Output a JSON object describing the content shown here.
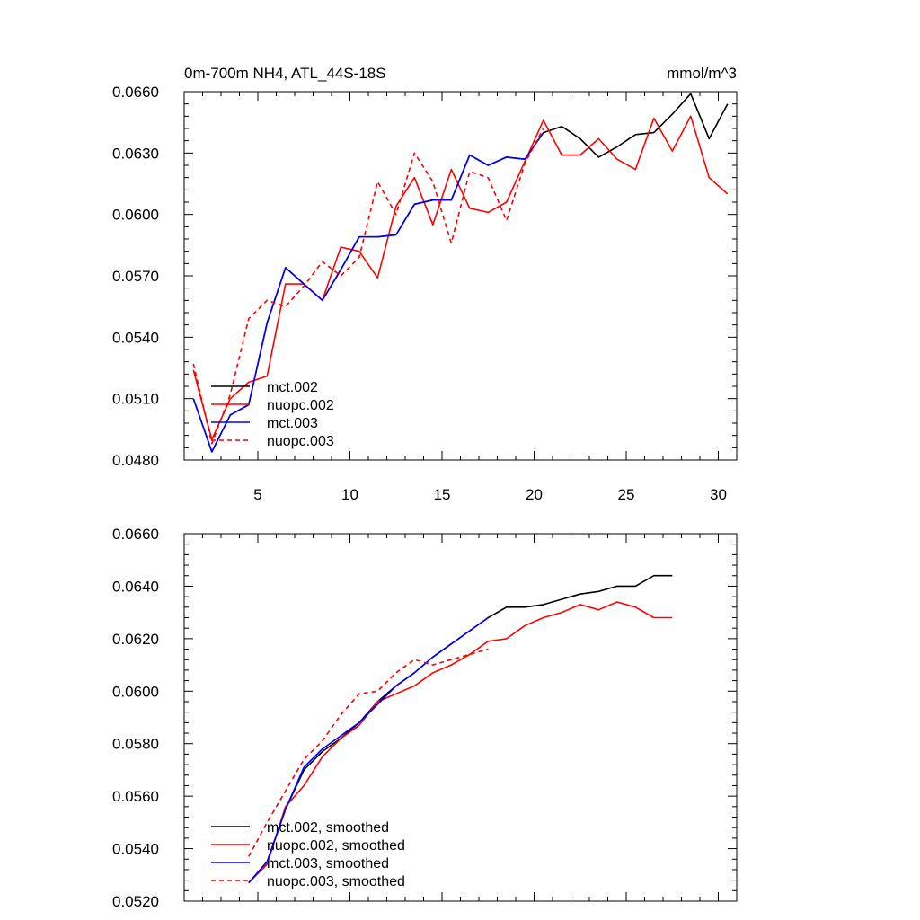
{
  "chart_data": [
    {
      "type": "line",
      "title": "0m-700m NH4, ATL_44S-18S",
      "units": "mmol/m^3",
      "xlim": [
        1,
        31
      ],
      "ylim": [
        0.048,
        0.066
      ],
      "xticks": [
        5,
        10,
        15,
        20,
        25,
        30
      ],
      "xtick_labels": [
        "5",
        "10",
        "15",
        "20",
        "25",
        "30"
      ],
      "yticks": [
        0.048,
        0.051,
        0.054,
        0.057,
        0.06,
        0.063,
        0.066
      ],
      "ytick_labels": [
        "0.0480",
        "0.0510",
        "0.0540",
        "0.0570",
        "0.0600",
        "0.0630",
        "0.0660"
      ],
      "legend_position": "lower-left",
      "series": [
        {
          "name": "mct.002",
          "color": "#000000",
          "dash": "solid",
          "x": [
            1.5,
            2.5,
            3.5,
            4.5,
            5.5,
            6.5,
            7.5,
            8.5,
            9.5,
            10.5,
            11.5,
            12.5,
            13.5,
            14.5,
            15.5,
            16.5,
            17.5,
            18.5,
            19.5,
            20.5,
            21.5,
            22.5,
            23.5,
            24.5,
            25.5,
            26.5,
            27.5,
            28.5,
            29.5,
            30.5
          ],
          "values": [
            0.051,
            0.0484,
            0.0502,
            0.0507,
            0.0547,
            0.0574,
            0.0566,
            0.0558,
            0.0573,
            0.0589,
            0.0589,
            0.059,
            0.0605,
            0.0607,
            0.0607,
            0.0629,
            0.0624,
            0.0628,
            0.0627,
            0.064,
            0.0643,
            0.0637,
            0.0628,
            0.0633,
            0.0639,
            0.064,
            0.0649,
            0.0659,
            0.0637,
            0.0654
          ]
        },
        {
          "name": "nuopc.002",
          "color": "#ff0000",
          "dash": "solid",
          "x": [
            1.5,
            2.5,
            3.5,
            4.5,
            5.5,
            6.5,
            7.5,
            8.5,
            9.5,
            10.5,
            11.5,
            12.5,
            13.5,
            14.5,
            15.5,
            16.5,
            17.5,
            18.5,
            19.5,
            20.5,
            21.5,
            22.5,
            23.5,
            24.5,
            25.5,
            26.5,
            27.5,
            28.5,
            29.5,
            30.5
          ],
          "values": [
            0.0524,
            0.049,
            0.051,
            0.0518,
            0.0521,
            0.0566,
            0.0566,
            0.0558,
            0.0584,
            0.0582,
            0.0569,
            0.0604,
            0.0618,
            0.0595,
            0.0622,
            0.0603,
            0.0601,
            0.0606,
            0.0626,
            0.0646,
            0.0629,
            0.0629,
            0.0637,
            0.0627,
            0.0622,
            0.0647,
            0.0631,
            0.0648,
            0.0618,
            0.061
          ]
        },
        {
          "name": "mct.003",
          "color": "#0000ff",
          "dash": "solid",
          "x": [
            1.5,
            2.5,
            3.5,
            4.5,
            5.5,
            6.5,
            7.5,
            8.5,
            9.5,
            10.5,
            11.5,
            12.5,
            13.5,
            14.5,
            15.5,
            16.5,
            17.5,
            18.5,
            19.5,
            20.5
          ],
          "values": [
            0.051,
            0.0484,
            0.0502,
            0.0507,
            0.0547,
            0.0574,
            0.0566,
            0.0558,
            0.0573,
            0.0589,
            0.0589,
            0.059,
            0.0605,
            0.0607,
            0.0607,
            0.0629,
            0.0624,
            0.0628,
            0.0627,
            0.064
          ]
        },
        {
          "name": "nuopc.003",
          "color": "#ff0000",
          "dash": "dashed",
          "x": [
            1.5,
            2.5,
            3.5,
            4.5,
            5.5,
            6.5,
            7.5,
            8.5,
            9.5,
            10.5,
            11.5,
            12.5,
            13.5,
            14.5,
            15.5,
            16.5,
            17.5,
            18.5,
            19.5,
            20.5
          ],
          "values": [
            0.0527,
            0.0488,
            0.0512,
            0.0549,
            0.0558,
            0.0555,
            0.0565,
            0.0577,
            0.057,
            0.0579,
            0.0616,
            0.06,
            0.063,
            0.0616,
            0.0586,
            0.0621,
            0.0618,
            0.0597,
            0.0625,
            0.0642
          ]
        }
      ]
    },
    {
      "type": "line",
      "xlim": [
        1,
        31
      ],
      "ylim": [
        0.052,
        0.066
      ],
      "xticks": [
        5,
        10,
        15,
        20,
        25,
        30
      ],
      "yticks": [
        0.052,
        0.054,
        0.056,
        0.058,
        0.06,
        0.062,
        0.064,
        0.066
      ],
      "ytick_labels": [
        "0.0520",
        "0.0540",
        "0.0560",
        "0.0580",
        "0.0600",
        "0.0620",
        "0.0640",
        "0.0660"
      ],
      "legend_position": "lower-left",
      "series": [
        {
          "name": "mct.002, smoothed",
          "color": "#000000",
          "dash": "solid",
          "x": [
            4.5,
            5.5,
            6.5,
            7.5,
            8.5,
            9.5,
            10.5,
            11.5,
            12.5,
            13.5,
            14.5,
            15.5,
            16.5,
            17.5,
            18.5,
            19.5,
            20.5,
            21.5,
            22.5,
            23.5,
            24.5,
            25.5,
            26.5,
            27.5
          ],
          "values": [
            0.0527,
            0.0535,
            0.0555,
            0.057,
            0.0577,
            0.0582,
            0.0588,
            0.0596,
            0.0602,
            0.0607,
            0.0613,
            0.0618,
            0.0623,
            0.0628,
            0.0632,
            0.0632,
            0.0633,
            0.0635,
            0.0637,
            0.0638,
            0.064,
            0.064,
            0.0644,
            0.0644
          ]
        },
        {
          "name": "nuopc.002, smoothed",
          "color": "#ff0000",
          "dash": "solid",
          "x": [
            4.5,
            5.5,
            6.5,
            7.5,
            8.5,
            9.5,
            10.5,
            11.5,
            12.5,
            13.5,
            14.5,
            15.5,
            16.5,
            17.5,
            18.5,
            19.5,
            20.5,
            21.5,
            22.5,
            23.5,
            24.5,
            25.5,
            26.5,
            27.5
          ],
          "values": [
            0.0527,
            0.0534,
            0.0556,
            0.0564,
            0.0575,
            0.0582,
            0.0587,
            0.0596,
            0.0599,
            0.0602,
            0.0607,
            0.061,
            0.0614,
            0.0619,
            0.062,
            0.0625,
            0.0628,
            0.063,
            0.0633,
            0.0631,
            0.0634,
            0.0632,
            0.0628,
            0.0628
          ]
        },
        {
          "name": "mct.003, smoothed",
          "color": "#0000ff",
          "dash": "solid",
          "x": [
            4.5,
            5.5,
            6.5,
            7.5,
            8.5,
            9.5,
            10.5,
            11.5,
            12.5,
            13.5,
            14.5,
            15.5,
            16.5,
            17.5
          ],
          "values": [
            0.0527,
            0.0535,
            0.0555,
            0.0571,
            0.0578,
            0.0583,
            0.0588,
            0.0595,
            0.0602,
            0.0607,
            0.0613,
            0.0618,
            0.0623,
            0.0628
          ]
        },
        {
          "name": "nuopc.003, smoothed",
          "color": "#ff0000",
          "dash": "dashed",
          "x": [
            4.5,
            5.5,
            6.5,
            7.5,
            8.5,
            9.5,
            10.5,
            11.5,
            12.5,
            13.5,
            14.5,
            15.5,
            16.5,
            17.5
          ],
          "values": [
            0.0537,
            0.055,
            0.0562,
            0.0574,
            0.0581,
            0.0591,
            0.0599,
            0.06,
            0.0607,
            0.0612,
            0.061,
            0.0612,
            0.0614,
            0.0616
          ]
        }
      ]
    }
  ]
}
